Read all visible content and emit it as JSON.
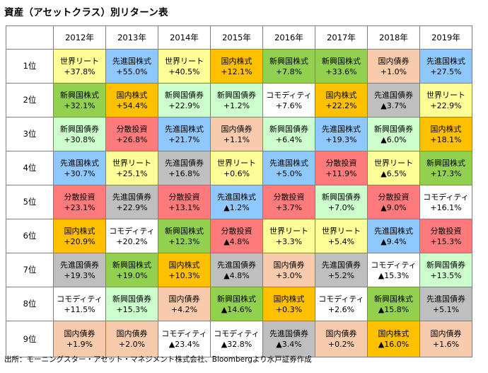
{
  "title": "資産（アセットクラス）別リターン表",
  "source": "出所：モーニングスター・アセット・マネジメント株式会社、Bloombergより水戸証券作成",
  "colors": {
    "世界リート": "#ffff99",
    "先進国株式": "#8ec8ff",
    "国内株式": "#ffc000",
    "新興国株式": "#92d050",
    "国内債券": "#f8cbad",
    "新興国債券": "#ccffcc",
    "先進国債券": "#bfbfbf",
    "分散投資": "#ff7b7b",
    "コモディティ": "#ffffff"
  },
  "chart_data": {
    "type": "table",
    "columns": [
      "2012年",
      "2013年",
      "2014年",
      "2015年",
      "2016年",
      "2017年",
      "2018年",
      "2019年"
    ],
    "rows": [
      {
        "rank": "1位",
        "cells": [
          {
            "asset": "世界リート",
            "ret": "+37.8%"
          },
          {
            "asset": "先進国株式",
            "ret": "+55.0%"
          },
          {
            "asset": "世界リート",
            "ret": "+40.5%"
          },
          {
            "asset": "国内株式",
            "ret": "+12.1%"
          },
          {
            "asset": "新興国株式",
            "ret": "+7.8%"
          },
          {
            "asset": "新興国株式",
            "ret": "+33.6%"
          },
          {
            "asset": "国内債券",
            "ret": "+1.0%"
          },
          {
            "asset": "先進国株式",
            "ret": "+27.5%"
          }
        ]
      },
      {
        "rank": "2位",
        "cells": [
          {
            "asset": "新興国株式",
            "ret": "+32.1%"
          },
          {
            "asset": "国内株式",
            "ret": "+54.4%"
          },
          {
            "asset": "新興国債券",
            "ret": "+22.9%"
          },
          {
            "asset": "新興国債券",
            "ret": "+1.2%"
          },
          {
            "asset": "コモディティ",
            "ret": "+7.6%"
          },
          {
            "asset": "国内株式",
            "ret": "+22.2%"
          },
          {
            "asset": "先進国債券",
            "ret": "▲3.7%"
          },
          {
            "asset": "世界リート",
            "ret": "+22.9%"
          }
        ]
      },
      {
        "rank": "3位",
        "cells": [
          {
            "asset": "新興国債券",
            "ret": "+30.8%"
          },
          {
            "asset": "分散投資",
            "ret": "+26.8%"
          },
          {
            "asset": "先進国株式",
            "ret": "+21.7%"
          },
          {
            "asset": "国内債券",
            "ret": "+1.1%"
          },
          {
            "asset": "新興国債券",
            "ret": "+6.4%"
          },
          {
            "asset": "先進国株式",
            "ret": "+19.3%"
          },
          {
            "asset": "新興国債券",
            "ret": "▲6.0%"
          },
          {
            "asset": "国内株式",
            "ret": "+18.1%"
          }
        ]
      },
      {
        "rank": "4位",
        "cells": [
          {
            "asset": "先進国株式",
            "ret": "+30.7%"
          },
          {
            "asset": "世界リート",
            "ret": "+25.1%"
          },
          {
            "asset": "先進国債券",
            "ret": "+16.8%"
          },
          {
            "asset": "世界リート",
            "ret": "+0.6%"
          },
          {
            "asset": "先進国株式",
            "ret": "+5.0%"
          },
          {
            "asset": "分散投資",
            "ret": "+11.9%"
          },
          {
            "asset": "世界リート",
            "ret": "▲6.5%"
          },
          {
            "asset": "新興国株式",
            "ret": "+17.3%"
          }
        ]
      },
      {
        "rank": "5位",
        "cells": [
          {
            "asset": "分散投資",
            "ret": "+23.1%"
          },
          {
            "asset": "先進国債券",
            "ret": "+22.9%"
          },
          {
            "asset": "分散投資",
            "ret": "+13.1%"
          },
          {
            "asset": "先進国株式",
            "ret": "▲1.2%"
          },
          {
            "asset": "分散投資",
            "ret": "+3.7%"
          },
          {
            "asset": "新興国債券",
            "ret": "+7.0%"
          },
          {
            "asset": "分散投資",
            "ret": "▲9.0%"
          },
          {
            "asset": "コモディティ",
            "ret": "+16.1%"
          }
        ]
      },
      {
        "rank": "6位",
        "cells": [
          {
            "asset": "国内株式",
            "ret": "+20.9%"
          },
          {
            "asset": "コモディティ",
            "ret": "+20.2%"
          },
          {
            "asset": "新興国株式",
            "ret": "+12.3%"
          },
          {
            "asset": "分散投資",
            "ret": "▲4.8%"
          },
          {
            "asset": "世界リート",
            "ret": "+3.3%"
          },
          {
            "asset": "世界リート",
            "ret": "+5.4%"
          },
          {
            "asset": "先進国株式",
            "ret": "▲9.4%"
          },
          {
            "asset": "分散投資",
            "ret": "+15.3%"
          }
        ]
      },
      {
        "rank": "7位",
        "cells": [
          {
            "asset": "先進国債券",
            "ret": "+19.3%"
          },
          {
            "asset": "新興国株式",
            "ret": "+19.0%"
          },
          {
            "asset": "国内株式",
            "ret": "+10.3%"
          },
          {
            "asset": "先進国債券",
            "ret": "▲4.8%"
          },
          {
            "asset": "国内債券",
            "ret": "+3.0%"
          },
          {
            "asset": "先進国債券",
            "ret": "+5.2%"
          },
          {
            "asset": "コモディティ",
            "ret": "▲15.3%"
          },
          {
            "asset": "新興国債券",
            "ret": "+13.5%"
          }
        ]
      },
      {
        "rank": "8位",
        "cells": [
          {
            "asset": "コモディティ",
            "ret": "+11.5%"
          },
          {
            "asset": "新興国債券",
            "ret": "+15.3%"
          },
          {
            "asset": "国内債券",
            "ret": "+4.2%"
          },
          {
            "asset": "新興国株式",
            "ret": "▲14.6%"
          },
          {
            "asset": "国内株式",
            "ret": "+0.3%"
          },
          {
            "asset": "コモディティ",
            "ret": "+2.6%"
          },
          {
            "asset": "新興国株式",
            "ret": "▲15.8%"
          },
          {
            "asset": "先進国債券",
            "ret": "+5.1%"
          }
        ]
      },
      {
        "rank": "9位",
        "cells": [
          {
            "asset": "国内債券",
            "ret": "+1.9%"
          },
          {
            "asset": "国内債券",
            "ret": "+2.0%"
          },
          {
            "asset": "コモディティ",
            "ret": "▲23.4%"
          },
          {
            "asset": "コモディティ",
            "ret": "▲32.8%"
          },
          {
            "asset": "先進国債券",
            "ret": "▲3.4%"
          },
          {
            "asset": "国内債券",
            "ret": "+0.2%"
          },
          {
            "asset": "国内株式",
            "ret": "▲16.0%"
          },
          {
            "asset": "国内債券",
            "ret": "+1.6%"
          }
        ]
      }
    ]
  }
}
